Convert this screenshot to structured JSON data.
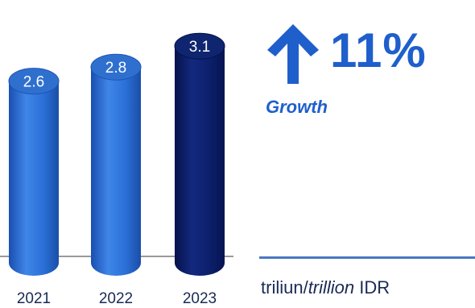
{
  "chart_data": {
    "type": "bar",
    "categories": [
      "2021",
      "2022",
      "2023"
    ],
    "values": [
      2.6,
      2.8,
      3.1
    ],
    "data_labels": [
      "2.6",
      "2.8",
      "3.1"
    ],
    "bar_colors": [
      "#2a6fd6",
      "#2a6fd6",
      "#0b1f6b"
    ],
    "title": "",
    "xlabel": "",
    "ylabel": "",
    "grid": false,
    "legend": "none"
  },
  "highlight": {
    "arrow_icon": "arrow-up-icon",
    "value": "11%",
    "label": "Growth",
    "color": "#1f5fcc"
  },
  "unit": {
    "local": "triliun/",
    "english": "trillion",
    "currency": " IDR"
  }
}
